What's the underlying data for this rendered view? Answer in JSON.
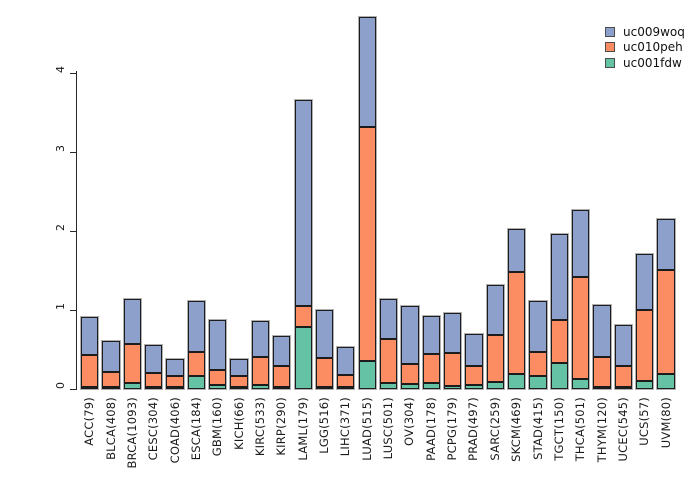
{
  "chart_data": {
    "type": "bar",
    "stacked": true,
    "title": "",
    "xlabel": "",
    "ylabel": "",
    "grid": false,
    "categories": [
      "ACC(79)",
      "BLCA(408)",
      "BRCA(1093)",
      "CESC(304)",
      "COAD(406)",
      "ESCA(184)",
      "GBM(160)",
      "KICH(66)",
      "KIRC(533)",
      "KIRP(290)",
      "LAML(179)",
      "LGG(516)",
      "LIHC(371)",
      "LUAD(515)",
      "LUSC(501)",
      "OV(304)",
      "PAAD(178)",
      "PCPG(179)",
      "PRAD(497)",
      "SARC(259)",
      "SKCM(469)",
      "STAD(415)",
      "TGCT(150)",
      "THCA(501)",
      "THYM(120)",
      "UCEC(545)",
      "UCS(57)",
      "UVM(80)"
    ],
    "series": [
      {
        "name": "uc001fdw",
        "color": "#66c2a5",
        "values": [
          0.02,
          0.02,
          0.07,
          0.02,
          0.02,
          0.17,
          0.05,
          0.02,
          0.05,
          0.02,
          0.78,
          0.03,
          0.02,
          0.36,
          0.07,
          0.06,
          0.07,
          0.04,
          0.05,
          0.09,
          0.19,
          0.16,
          0.33,
          0.13,
          0.02,
          0.03,
          0.1,
          0.19
        ]
      },
      {
        "name": "uc010peh",
        "color": "#fc8d62",
        "values": [
          0.41,
          0.19,
          0.49,
          0.18,
          0.14,
          0.3,
          0.19,
          0.14,
          0.35,
          0.26,
          0.26,
          0.37,
          0.15,
          2.96,
          0.56,
          0.25,
          0.37,
          0.42,
          0.24,
          0.59,
          1.29,
          0.3,
          0.55,
          1.29,
          0.38,
          0.27,
          0.9,
          1.32
        ]
      },
      {
        "name": "uc009woq",
        "color": "#8da0cb",
        "values": [
          0.48,
          0.39,
          0.57,
          0.35,
          0.21,
          0.64,
          0.63,
          0.21,
          0.45,
          0.38,
          2.61,
          0.61,
          0.35,
          1.39,
          0.51,
          0.73,
          0.48,
          0.5,
          0.41,
          0.63,
          0.54,
          0.64,
          1.09,
          0.85,
          0.66,
          0.52,
          0.71,
          0.64
        ]
      }
    ],
    "legend": {
      "position": "top-right",
      "order": [
        "uc009woq",
        "uc010peh",
        "uc001fdw"
      ]
    },
    "y_axis": {
      "ticks": [
        0,
        1,
        2,
        3,
        4
      ],
      "range": [
        0,
        4.75
      ]
    }
  },
  "colors": {
    "background": "#ffffff",
    "axis": "#2a2a2a",
    "bar_border": "#1c1c1c",
    "bar_shadow": "#b0b0b0"
  }
}
